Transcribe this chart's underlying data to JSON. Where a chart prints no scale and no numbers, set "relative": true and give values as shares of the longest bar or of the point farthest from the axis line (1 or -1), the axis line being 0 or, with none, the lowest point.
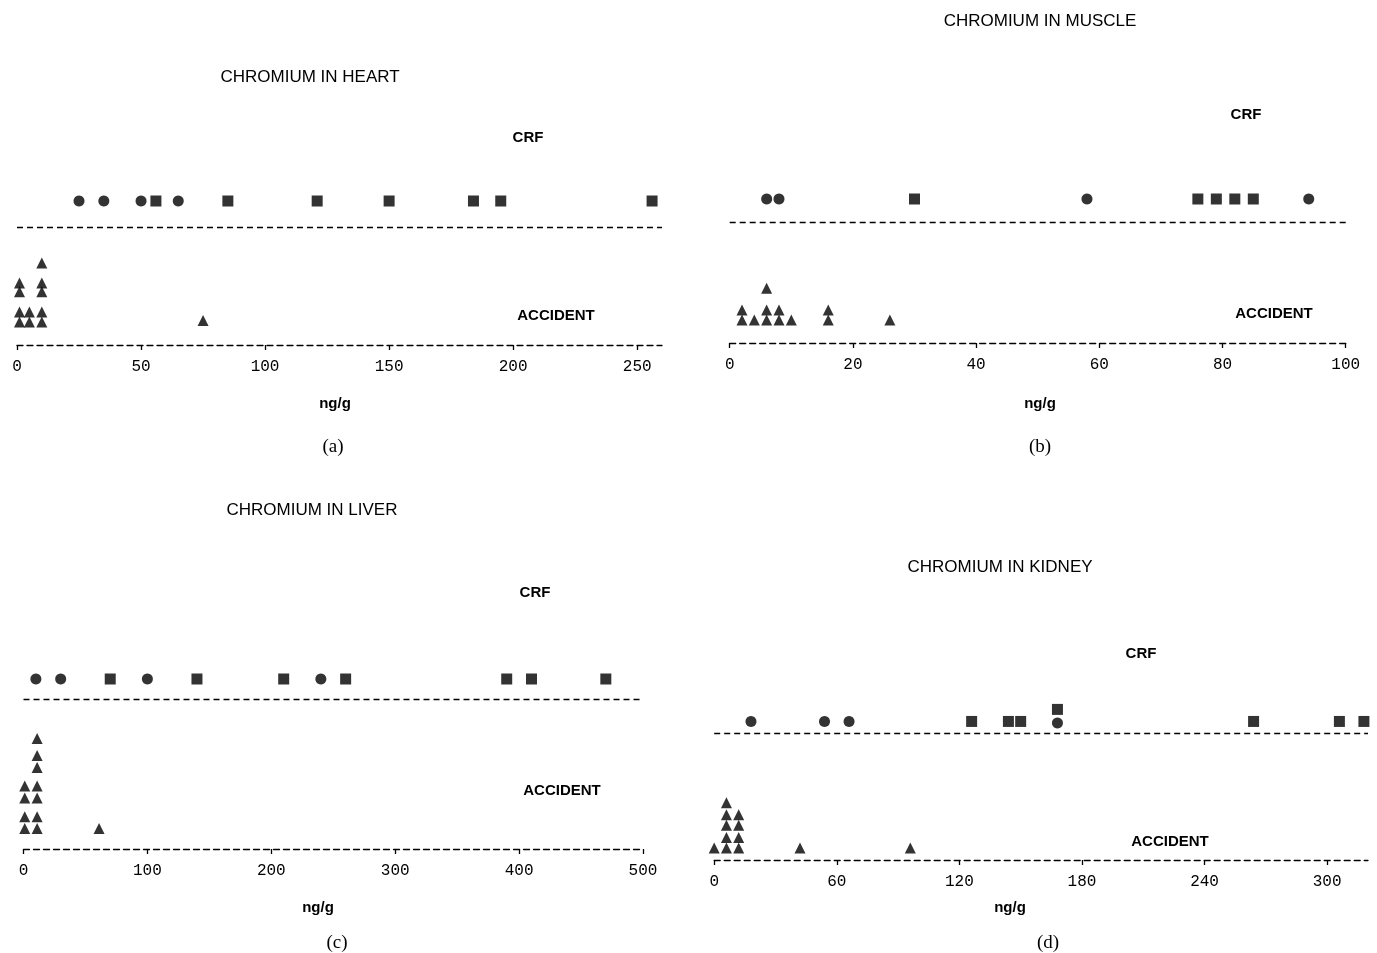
{
  "chart_data": [
    {
      "type": "scatter",
      "title": "CHROMIUM IN HEART",
      "xlabel": "ng/g",
      "annotations": [
        "CRF",
        "ACCIDENT",
        "(a)"
      ],
      "xlim": [
        0,
        260
      ],
      "xticks": [
        0,
        50,
        100,
        150,
        200,
        250
      ],
      "relative": true,
      "ref_lines": [
        {
          "axis": "y",
          "value": 0.82
        }
      ],
      "series": [
        {
          "color": "#000000",
          "marker": "circle",
          "x": [
            25,
            35,
            50,
            65
          ],
          "values": [
            1,
            1,
            1,
            1
          ]
        },
        {
          "color": "#000000",
          "marker": "square",
          "x": [
            56,
            85,
            121,
            150,
            184,
            195,
            256
          ],
          "values": [
            1,
            1,
            1,
            1,
            1,
            1,
            1
          ]
        },
        {
          "color": "#000000",
          "marker": "triangle",
          "x": [
            1,
            1,
            1,
            1,
            5,
            5,
            10,
            10,
            10,
            10,
            10,
            75
          ],
          "values": [
            0.16,
            0.23,
            0.37,
            0.43,
            0.16,
            0.23,
            0.16,
            0.23,
            0.37,
            0.43,
            0.57,
            0.17
          ]
        }
      ]
    },
    {
      "type": "scatter",
      "title": "CHROMIUM IN MUSCLE",
      "xlabel": "ng/g",
      "annotations": [
        "CRF",
        "ACCIDENT",
        "(b)"
      ],
      "xlim": [
        0,
        100
      ],
      "xticks": [
        0,
        20,
        40,
        60,
        80,
        100
      ],
      "relative": true,
      "ref_lines": [
        {
          "axis": "y",
          "value": 0.84
        }
      ],
      "series": [
        {
          "color": "#000000",
          "marker": "circle",
          "x": [
            6,
            8,
            58,
            94
          ],
          "values": [
            1,
            1,
            1,
            1
          ]
        },
        {
          "color": "#000000",
          "marker": "square",
          "x": [
            30,
            76,
            79,
            82,
            85
          ],
          "values": [
            1,
            1,
            1,
            1,
            1
          ]
        },
        {
          "color": "#000000",
          "marker": "triangle",
          "x": [
            2,
            2,
            4,
            6,
            6,
            6,
            8,
            8,
            10,
            16,
            16,
            26
          ],
          "values": [
            0.16,
            0.23,
            0.16,
            0.16,
            0.23,
            0.38,
            0.16,
            0.23,
            0.16,
            0.16,
            0.23,
            0.16
          ]
        }
      ]
    },
    {
      "type": "scatter",
      "title": "CHROMIUM IN LIVER",
      "xlabel": "ng/g",
      "annotations": [
        "CRF",
        "ACCIDENT",
        "(c)"
      ],
      "xlim": [
        0,
        500
      ],
      "xticks": [
        0,
        100,
        200,
        300,
        400,
        500
      ],
      "relative": true,
      "ref_lines": [
        {
          "axis": "y",
          "value": 0.88
        }
      ],
      "series": [
        {
          "color": "#000000",
          "marker": "circle",
          "x": [
            10,
            30,
            100,
            240
          ],
          "values": [
            1,
            1,
            1,
            1
          ]
        },
        {
          "color": "#000000",
          "marker": "square",
          "x": [
            70,
            140,
            210,
            260,
            390,
            410,
            470
          ],
          "values": [
            1,
            1,
            1,
            1,
            1,
            1,
            1
          ]
        },
        {
          "color": "#000000",
          "marker": "triangle",
          "x": [
            1,
            1,
            1,
            1,
            11,
            11,
            11,
            11,
            11,
            11,
            11,
            61
          ],
          "values": [
            0.12,
            0.19,
            0.3,
            0.37,
            0.12,
            0.19,
            0.3,
            0.37,
            0.48,
            0.55,
            0.65,
            0.12
          ]
        }
      ]
    },
    {
      "type": "scatter",
      "title": "CHROMIUM IN KIDNEY",
      "xlabel": "ng/g",
      "annotations": [
        "CRF",
        "ACCIDENT",
        "(d)"
      ],
      "xlim": [
        0,
        320
      ],
      "xticks": [
        0,
        60,
        120,
        180,
        240,
        300
      ],
      "relative": true,
      "ref_lines": [
        {
          "axis": "y",
          "value": 0.84
        }
      ],
      "series": [
        {
          "color": "#000000",
          "marker": "circle",
          "x": [
            18,
            54,
            66,
            168
          ],
          "values": [
            0.92,
            0.92,
            0.92,
            0.91
          ]
        },
        {
          "color": "#000000",
          "marker": "square",
          "x": [
            126,
            144,
            150,
            168,
            264,
            306,
            318
          ],
          "values": [
            0.92,
            0.92,
            0.92,
            1,
            0.92,
            0.92,
            0.92
          ]
        },
        {
          "color": "#000000",
          "marker": "triangle",
          "x": [
            0,
            6,
            6,
            6,
            6,
            6,
            12,
            12,
            12,
            12,
            42,
            96
          ],
          "values": [
            0.08,
            0.08,
            0.15,
            0.23,
            0.3,
            0.38,
            0.08,
            0.15,
            0.23,
            0.3,
            0.08,
            0.08
          ]
        }
      ]
    }
  ]
}
